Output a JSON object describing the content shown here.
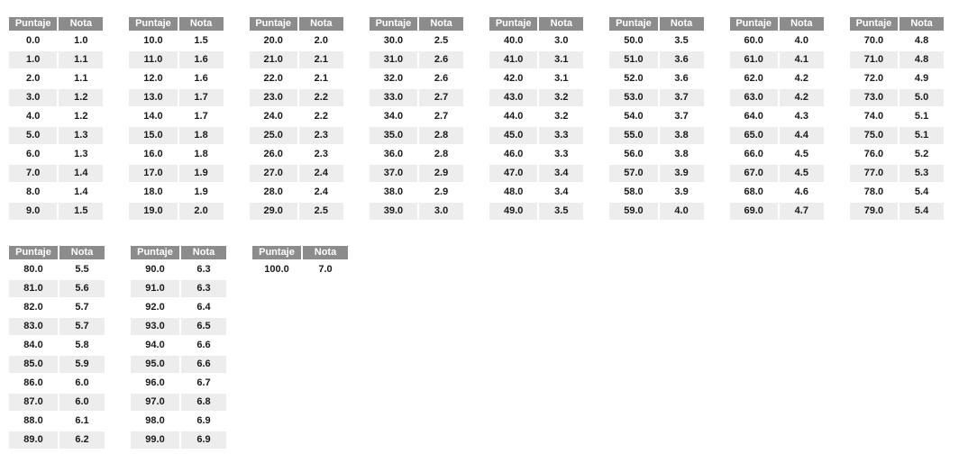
{
  "column_headers": {
    "puntaje": "Puntaje",
    "nota": "Nota"
  },
  "nota_fail_threshold": 4.0,
  "colors": {
    "header_bg": "#8c8c8c",
    "header_text": "#ffffff",
    "stripe_bg": "#ededed",
    "fail_text": "#fe0000",
    "pass_text": "#1a1a1a",
    "page_bg": "#ffffff"
  },
  "layout": {
    "tables_in_first_band": 8
  },
  "chart_data": [
    {
      "type": "table",
      "columns": [
        "Puntaje",
        "Nota"
      ],
      "rows": [
        [
          "0.0",
          "1.0"
        ],
        [
          "1.0",
          "1.1"
        ],
        [
          "2.0",
          "1.1"
        ],
        [
          "3.0",
          "1.2"
        ],
        [
          "4.0",
          "1.2"
        ],
        [
          "5.0",
          "1.3"
        ],
        [
          "6.0",
          "1.3"
        ],
        [
          "7.0",
          "1.4"
        ],
        [
          "8.0",
          "1.4"
        ],
        [
          "9.0",
          "1.5"
        ]
      ]
    },
    {
      "type": "table",
      "columns": [
        "Puntaje",
        "Nota"
      ],
      "rows": [
        [
          "10.0",
          "1.5"
        ],
        [
          "11.0",
          "1.6"
        ],
        [
          "12.0",
          "1.6"
        ],
        [
          "13.0",
          "1.7"
        ],
        [
          "14.0",
          "1.7"
        ],
        [
          "15.0",
          "1.8"
        ],
        [
          "16.0",
          "1.8"
        ],
        [
          "17.0",
          "1.9"
        ],
        [
          "18.0",
          "1.9"
        ],
        [
          "19.0",
          "2.0"
        ]
      ]
    },
    {
      "type": "table",
      "columns": [
        "Puntaje",
        "Nota"
      ],
      "rows": [
        [
          "20.0",
          "2.0"
        ],
        [
          "21.0",
          "2.1"
        ],
        [
          "22.0",
          "2.1"
        ],
        [
          "23.0",
          "2.2"
        ],
        [
          "24.0",
          "2.2"
        ],
        [
          "25.0",
          "2.3"
        ],
        [
          "26.0",
          "2.3"
        ],
        [
          "27.0",
          "2.4"
        ],
        [
          "28.0",
          "2.4"
        ],
        [
          "29.0",
          "2.5"
        ]
      ]
    },
    {
      "type": "table",
      "columns": [
        "Puntaje",
        "Nota"
      ],
      "rows": [
        [
          "30.0",
          "2.5"
        ],
        [
          "31.0",
          "2.6"
        ],
        [
          "32.0",
          "2.6"
        ],
        [
          "33.0",
          "2.7"
        ],
        [
          "34.0",
          "2.7"
        ],
        [
          "35.0",
          "2.8"
        ],
        [
          "36.0",
          "2.8"
        ],
        [
          "37.0",
          "2.9"
        ],
        [
          "38.0",
          "2.9"
        ],
        [
          "39.0",
          "3.0"
        ]
      ]
    },
    {
      "type": "table",
      "columns": [
        "Puntaje",
        "Nota"
      ],
      "rows": [
        [
          "40.0",
          "3.0"
        ],
        [
          "41.0",
          "3.1"
        ],
        [
          "42.0",
          "3.1"
        ],
        [
          "43.0",
          "3.2"
        ],
        [
          "44.0",
          "3.2"
        ],
        [
          "45.0",
          "3.3"
        ],
        [
          "46.0",
          "3.3"
        ],
        [
          "47.0",
          "3.4"
        ],
        [
          "48.0",
          "3.4"
        ],
        [
          "49.0",
          "3.5"
        ]
      ]
    },
    {
      "type": "table",
      "columns": [
        "Puntaje",
        "Nota"
      ],
      "rows": [
        [
          "50.0",
          "3.5"
        ],
        [
          "51.0",
          "3.6"
        ],
        [
          "52.0",
          "3.6"
        ],
        [
          "53.0",
          "3.7"
        ],
        [
          "54.0",
          "3.7"
        ],
        [
          "55.0",
          "3.8"
        ],
        [
          "56.0",
          "3.8"
        ],
        [
          "57.0",
          "3.9"
        ],
        [
          "58.0",
          "3.9"
        ],
        [
          "59.0",
          "4.0"
        ]
      ]
    },
    {
      "type": "table",
      "columns": [
        "Puntaje",
        "Nota"
      ],
      "rows": [
        [
          "60.0",
          "4.0"
        ],
        [
          "61.0",
          "4.1"
        ],
        [
          "62.0",
          "4.2"
        ],
        [
          "63.0",
          "4.2"
        ],
        [
          "64.0",
          "4.3"
        ],
        [
          "65.0",
          "4.4"
        ],
        [
          "66.0",
          "4.5"
        ],
        [
          "67.0",
          "4.5"
        ],
        [
          "68.0",
          "4.6"
        ],
        [
          "69.0",
          "4.7"
        ]
      ]
    },
    {
      "type": "table",
      "columns": [
        "Puntaje",
        "Nota"
      ],
      "rows": [
        [
          "70.0",
          "4.8"
        ],
        [
          "71.0",
          "4.8"
        ],
        [
          "72.0",
          "4.9"
        ],
        [
          "73.0",
          "5.0"
        ],
        [
          "74.0",
          "5.1"
        ],
        [
          "75.0",
          "5.1"
        ],
        [
          "76.0",
          "5.2"
        ],
        [
          "77.0",
          "5.3"
        ],
        [
          "78.0",
          "5.4"
        ],
        [
          "79.0",
          "5.4"
        ]
      ]
    },
    {
      "type": "table",
      "columns": [
        "Puntaje",
        "Nota"
      ],
      "rows": [
        [
          "80.0",
          "5.5"
        ],
        [
          "81.0",
          "5.6"
        ],
        [
          "82.0",
          "5.7"
        ],
        [
          "83.0",
          "5.7"
        ],
        [
          "84.0",
          "5.8"
        ],
        [
          "85.0",
          "5.9"
        ],
        [
          "86.0",
          "6.0"
        ],
        [
          "87.0",
          "6.0"
        ],
        [
          "88.0",
          "6.1"
        ],
        [
          "89.0",
          "6.2"
        ]
      ]
    },
    {
      "type": "table",
      "columns": [
        "Puntaje",
        "Nota"
      ],
      "rows": [
        [
          "90.0",
          "6.3"
        ],
        [
          "91.0",
          "6.3"
        ],
        [
          "92.0",
          "6.4"
        ],
        [
          "93.0",
          "6.5"
        ],
        [
          "94.0",
          "6.6"
        ],
        [
          "95.0",
          "6.6"
        ],
        [
          "96.0",
          "6.7"
        ],
        [
          "97.0",
          "6.8"
        ],
        [
          "98.0",
          "6.9"
        ],
        [
          "99.0",
          "6.9"
        ]
      ]
    },
    {
      "type": "table",
      "columns": [
        "Puntaje",
        "Nota"
      ],
      "rows": [
        [
          "100.0",
          "7.0"
        ]
      ]
    }
  ]
}
